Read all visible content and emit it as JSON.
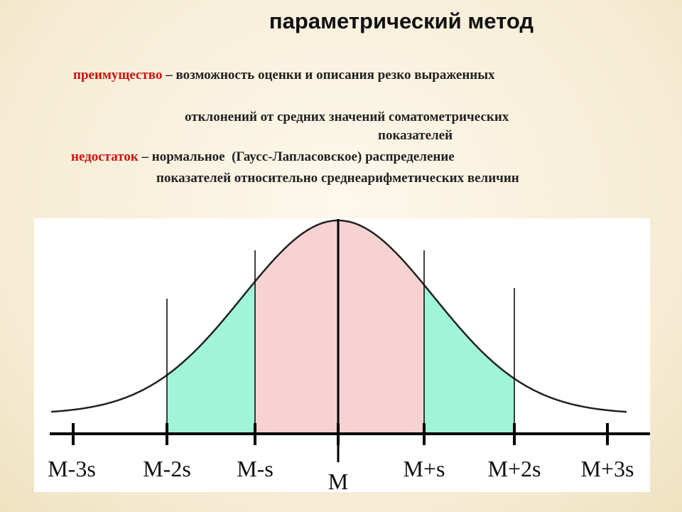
{
  "title": "параметрический метод",
  "advantage": {
    "term": "преимущество",
    "lines": [
      "– возможность оценки и описания резко выраженных",
      "отклонений от средних значений соматометрических",
      "показателей"
    ]
  },
  "drawback": {
    "term": "недостаток",
    "lines": [
      "– нормальное  (Гаусс-Лапласовское) распределение",
      "показателей относительно среднеарифметических величин"
    ]
  },
  "figure": {
    "labels": [
      "M-3s",
      "M-2s",
      "M-s",
      "M",
      "M+s",
      "M+2s",
      "M+3s"
    ]
  }
}
